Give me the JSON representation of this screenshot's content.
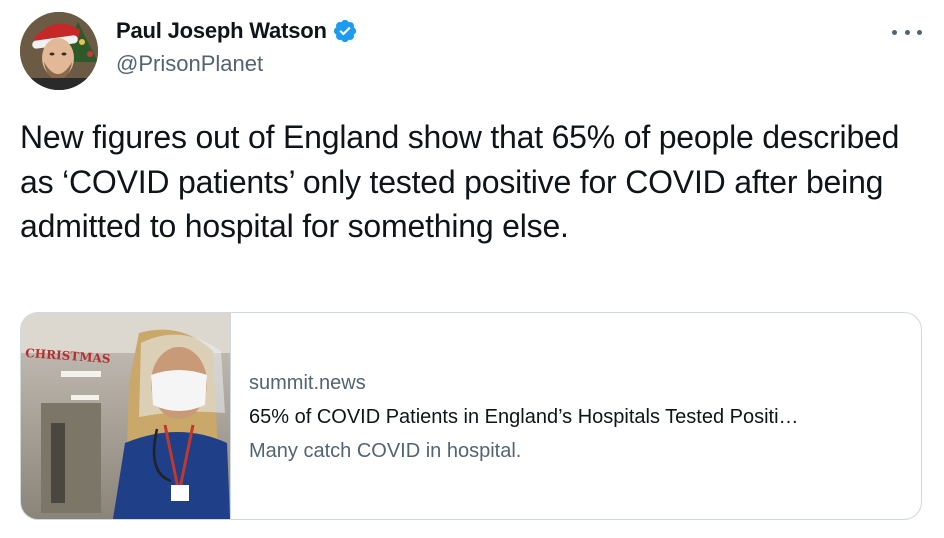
{
  "author": {
    "display_name": "Paul Joseph Watson",
    "handle": "@PrisonPlanet",
    "verified": true,
    "verified_icon": "verified-badge-icon",
    "verified_color": "#1d9bf0"
  },
  "menu": {
    "icon": "more-options-icon"
  },
  "tweet": {
    "text": "New figures out of England show that 65% of people described as ‘COVID patients’ only tested positive for COVID after being admitted to hospital for something else."
  },
  "card": {
    "domain": "summit.news",
    "title": "65% of COVID Patients in England’s Hospitals Tested Positi…",
    "description": "Many catch COVID in hospital.",
    "image_sign_text": "CHRISTMAS"
  },
  "colors": {
    "text_primary": "#0f1419",
    "text_secondary": "#536471",
    "border": "#cfd9de"
  }
}
